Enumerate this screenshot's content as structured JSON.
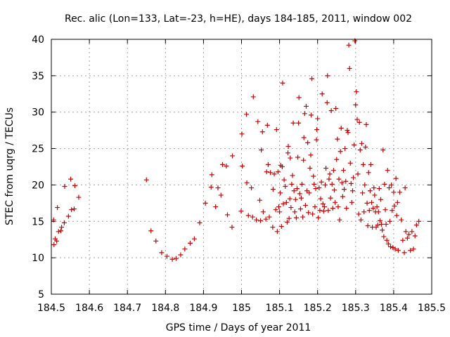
{
  "chart_data": {
    "type": "scatter",
    "title": "Rec. alic (Lon=133, Lat=-23, h=HE), days 184-185, 2011, window 002",
    "xlabel": "GPS time / Days of year 2011",
    "ylabel": "STEC from uqrg / TECUs",
    "xlim": [
      184.5,
      185.5
    ],
    "ylim": [
      5,
      40
    ],
    "grid": true,
    "marker": "+",
    "colors": {
      "points": "#cc0000"
    },
    "x_ticks": [
      "184.5",
      "184.6",
      "184.7",
      "184.8",
      "184.9",
      "185",
      "185.1",
      "185.2",
      "185.3",
      "185.4",
      "185.5"
    ],
    "y_ticks": [
      "5",
      "10",
      "15",
      "20",
      "25",
      "30",
      "35",
      "40"
    ],
    "points": [
      [
        184.506,
        15.2
      ],
      [
        184.507,
        11.8
      ],
      [
        184.51,
        12.6
      ],
      [
        184.514,
        12.3
      ],
      [
        184.516,
        16.9
      ],
      [
        184.519,
        13.6
      ],
      [
        184.525,
        13.7
      ],
      [
        184.527,
        14.2
      ],
      [
        184.534,
        14.8
      ],
      [
        184.535,
        19.8
      ],
      [
        184.545,
        15.7
      ],
      [
        184.551,
        20.8
      ],
      [
        184.553,
        16.6
      ],
      [
        184.56,
        16.7
      ],
      [
        184.562,
        19.9
      ],
      [
        184.572,
        18.3
      ],
      [
        184.75,
        20.7
      ],
      [
        184.762,
        13.7
      ],
      [
        184.775,
        12.3
      ],
      [
        184.79,
        10.7
      ],
      [
        184.804,
        10.2
      ],
      [
        184.818,
        9.8
      ],
      [
        184.828,
        9.9
      ],
      [
        184.84,
        10.4
      ],
      [
        184.851,
        11.2
      ],
      [
        184.865,
        12.0
      ],
      [
        184.876,
        12.6
      ],
      [
        184.89,
        14.8
      ],
      [
        184.905,
        17.5
      ],
      [
        184.92,
        19.7
      ],
      [
        184.922,
        21.4
      ],
      [
        184.932,
        17.0
      ],
      [
        184.938,
        19.6
      ],
      [
        184.946,
        18.6
      ],
      [
        184.95,
        22.8
      ],
      [
        184.96,
        22.6
      ],
      [
        184.963,
        15.9
      ],
      [
        184.975,
        14.2
      ],
      [
        184.976,
        24.0
      ],
      [
        184.999,
        16.4
      ],
      [
        185.001,
        27.0
      ],
      [
        185.002,
        22.6
      ],
      [
        185.013,
        29.7
      ],
      [
        185.014,
        20.3
      ],
      [
        185.018,
        15.8
      ],
      [
        185.026,
        19.6
      ],
      [
        185.029,
        15.6
      ],
      [
        185.031,
        32.1
      ],
      [
        185.039,
        15.2
      ],
      [
        185.043,
        28.7
      ],
      [
        185.048,
        17.9
      ],
      [
        185.05,
        15.1
      ],
      [
        185.052,
        24.8
      ],
      [
        185.055,
        27.3
      ],
      [
        185.057,
        16.3
      ],
      [
        185.064,
        15.3
      ],
      [
        185.066,
        21.8
      ],
      [
        185.068,
        28.2
      ],
      [
        185.07,
        22.8
      ],
      [
        185.073,
        15.6
      ],
      [
        185.076,
        21.7
      ],
      [
        185.082,
        14.2
      ],
      [
        185.083,
        19.4
      ],
      [
        185.086,
        21.5
      ],
      [
        185.09,
        16.6
      ],
      [
        185.092,
        27.6
      ],
      [
        185.094,
        13.6
      ],
      [
        185.096,
        21.8
      ],
      [
        185.098,
        17.0
      ],
      [
        185.1,
        16.3
      ],
      [
        185.102,
        18.9
      ],
      [
        185.103,
        22.7
      ],
      [
        185.105,
        14.3
      ],
      [
        185.107,
        22.5
      ],
      [
        185.108,
        34.0
      ],
      [
        185.11,
        17.4
      ],
      [
        185.112,
        20.7
      ],
      [
        185.115,
        19.8
      ],
      [
        185.118,
        17.6
      ],
      [
        185.12,
        14.9
      ],
      [
        185.122,
        24.4
      ],
      [
        185.123,
        25.3
      ],
      [
        185.125,
        15.4
      ],
      [
        185.127,
        18.1
      ],
      [
        185.128,
        23.7
      ],
      [
        185.13,
        16.9
      ],
      [
        185.132,
        20.1
      ],
      [
        185.134,
        21.3
      ],
      [
        185.136,
        28.5
      ],
      [
        185.138,
        19.2
      ],
      [
        185.14,
        16.3
      ],
      [
        185.142,
        18.0
      ],
      [
        185.144,
        15.5
      ],
      [
        185.146,
        19.5
      ],
      [
        185.148,
        23.8
      ],
      [
        185.15,
        28.5
      ],
      [
        185.151,
        32.0
      ],
      [
        185.153,
        18.8
      ],
      [
        185.155,
        16.7
      ],
      [
        185.157,
        18.2
      ],
      [
        185.159,
        20.1
      ],
      [
        185.161,
        15.6
      ],
      [
        185.163,
        23.4
      ],
      [
        185.164,
        26.5
      ],
      [
        185.166,
        29.8
      ],
      [
        185.168,
        17.2
      ],
      [
        185.17,
        30.8
      ],
      [
        185.172,
        19.2
      ],
      [
        185.174,
        25.8
      ],
      [
        185.176,
        16.2
      ],
      [
        185.178,
        18.9
      ],
      [
        185.18,
        22.3
      ],
      [
        185.182,
        24.1
      ],
      [
        185.183,
        29.6
      ],
      [
        185.185,
        34.6
      ],
      [
        185.187,
        16.0
      ],
      [
        185.189,
        21.2
      ],
      [
        185.191,
        20.1
      ],
      [
        185.193,
        17.0
      ],
      [
        185.195,
        19.5
      ],
      [
        185.197,
        26.2
      ],
      [
        185.198,
        27.6
      ],
      [
        185.2,
        29.1
      ],
      [
        185.202,
        15.5
      ],
      [
        185.204,
        19.6
      ],
      [
        185.206,
        16.5
      ],
      [
        185.208,
        18.1
      ],
      [
        185.21,
        20.4
      ],
      [
        185.212,
        32.5
      ],
      [
        185.214,
        17.4
      ],
      [
        185.216,
        16.4
      ],
      [
        185.218,
        17.0
      ],
      [
        185.22,
        20.0
      ],
      [
        185.222,
        22.3
      ],
      [
        185.225,
        31.3
      ],
      [
        185.226,
        35.0
      ],
      [
        185.228,
        16.5
      ],
      [
        185.23,
        20.8
      ],
      [
        185.232,
        21.5
      ],
      [
        185.234,
        18.2
      ],
      [
        185.236,
        30.2
      ],
      [
        185.238,
        20.1
      ],
      [
        185.24,
        16.8
      ],
      [
        185.242,
        22.0
      ],
      [
        185.244,
        19.3
      ],
      [
        185.246,
        17.6
      ],
      [
        185.248,
        30.5
      ],
      [
        185.25,
        23.5
      ],
      [
        185.252,
        26.3
      ],
      [
        185.254,
        17.0
      ],
      [
        185.256,
        20.8
      ],
      [
        185.258,
        15.2
      ],
      [
        185.26,
        24.6
      ],
      [
        185.262,
        27.8
      ],
      [
        185.264,
        20.3
      ],
      [
        185.266,
        18.4
      ],
      [
        185.268,
        22.0
      ],
      [
        185.27,
        19.4
      ],
      [
        185.272,
        25.0
      ],
      [
        185.274,
        20.5
      ],
      [
        185.276,
        16.8
      ],
      [
        185.278,
        27.5
      ],
      [
        185.28,
        27.2
      ],
      [
        185.282,
        39.2
      ],
      [
        185.284,
        36.0
      ],
      [
        185.286,
        23.0
      ],
      [
        185.288,
        20.2
      ],
      [
        185.29,
        17.6
      ],
      [
        185.292,
        19.2
      ],
      [
        185.294,
        21.0
      ],
      [
        185.296,
        25.5
      ],
      [
        185.298,
        39.8
      ],
      [
        185.3,
        31.0
      ],
      [
        185.302,
        32.8
      ],
      [
        185.304,
        29.0
      ],
      [
        185.306,
        21.5
      ],
      [
        185.308,
        16.0
      ],
      [
        185.31,
        28.6
      ],
      [
        185.312,
        24.8
      ],
      [
        185.314,
        15.2
      ],
      [
        185.316,
        25.7
      ],
      [
        185.318,
        18.9
      ],
      [
        185.32,
        22.8
      ],
      [
        185.322,
        16.3
      ],
      [
        185.324,
        20.0
      ],
      [
        185.326,
        25.2
      ],
      [
        185.328,
        28.3
      ],
      [
        185.33,
        17.5
      ],
      [
        185.332,
        14.4
      ],
      [
        185.334,
        21.7
      ],
      [
        185.336,
        16.5
      ],
      [
        185.338,
        19.2
      ],
      [
        185.34,
        22.8
      ],
      [
        185.342,
        17.6
      ],
      [
        185.344,
        14.2
      ],
      [
        185.346,
        16.8
      ],
      [
        185.348,
        19.6
      ],
      [
        185.35,
        18.6
      ],
      [
        185.352,
        16.3
      ],
      [
        185.354,
        14.2
      ],
      [
        185.356,
        17.0
      ],
      [
        185.358,
        14.5
      ],
      [
        185.36,
        16.3
      ],
      [
        185.362,
        19.5
      ],
      [
        185.364,
        15.1
      ],
      [
        185.366,
        18.0
      ],
      [
        185.368,
        14.6
      ],
      [
        185.37,
        13.8
      ],
      [
        185.372,
        24.8
      ],
      [
        185.374,
        12.9
      ],
      [
        185.376,
        20.1
      ],
      [
        185.378,
        16.6
      ],
      [
        185.38,
        14.6
      ],
      [
        185.382,
        12.4
      ],
      [
        185.384,
        22.0
      ],
      [
        185.386,
        11.9
      ],
      [
        185.388,
        19.6
      ],
      [
        185.39,
        15.0
      ],
      [
        185.392,
        11.5
      ],
      [
        185.394,
        20.0
      ],
      [
        185.396,
        16.5
      ],
      [
        185.398,
        11.4
      ],
      [
        185.4,
        19.0
      ],
      [
        185.402,
        17.1
      ],
      [
        185.404,
        11.2
      ],
      [
        185.406,
        20.9
      ],
      [
        185.408,
        15.8
      ],
      [
        185.41,
        17.6
      ],
      [
        185.412,
        11.0
      ],
      [
        185.416,
        19.0
      ],
      [
        185.42,
        15.2
      ],
      [
        185.424,
        12.4
      ],
      [
        185.428,
        10.7
      ],
      [
        185.43,
        19.6
      ],
      [
        185.432,
        13.6
      ],
      [
        185.436,
        12.7
      ],
      [
        185.44,
        13.2
      ],
      [
        185.444,
        11.0
      ],
      [
        185.448,
        13.6
      ],
      [
        185.452,
        11.2
      ],
      [
        185.456,
        13.0
      ],
      [
        185.46,
        14.5
      ],
      [
        185.466,
        15.0
      ]
    ]
  }
}
